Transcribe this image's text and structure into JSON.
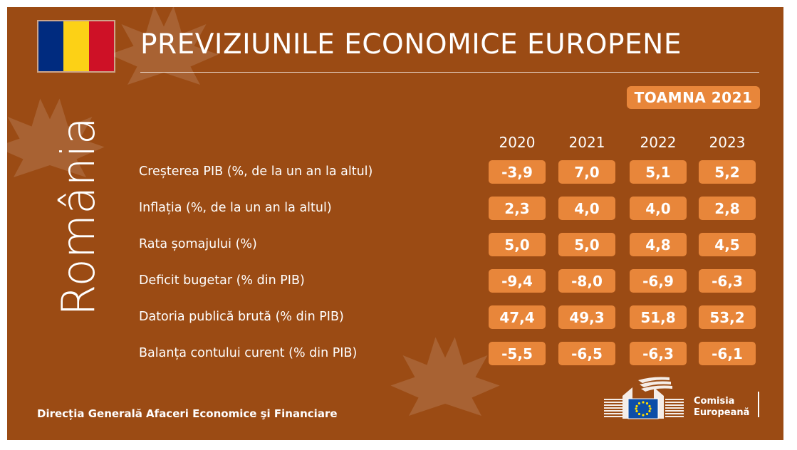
{
  "header": {
    "title": "PREVIZIUNILE ECONOMICE EUROPENE",
    "season": "TOAMNA 2021",
    "country": "România"
  },
  "flag": {
    "colors": [
      "#002b7f",
      "#fcd116",
      "#ce1126"
    ]
  },
  "years": [
    "2020",
    "2021",
    "2022",
    "2023"
  ],
  "rows": [
    {
      "label": "Creșterea PIB (%, de la un an la altul)",
      "values": [
        "-3,9",
        "7,0",
        "5,1",
        "5,2"
      ]
    },
    {
      "label": "Inflația (%, de la un an la altul)",
      "values": [
        "2,3",
        "4,0",
        "4,0",
        "2,8"
      ]
    },
    {
      "label": "Rata șomajului (%)",
      "values": [
        "5,0",
        "5,0",
        "4,8",
        "4,5"
      ]
    },
    {
      "label": "Deficit bugetar (% din PIB)",
      "values": [
        "-9,4",
        "-8,0",
        "-6,9",
        "-6,3"
      ]
    },
    {
      "label": "Datoria publică brută (% din PIB)",
      "values": [
        "47,4",
        "49,3",
        "51,8",
        "53,2"
      ]
    },
    {
      "label": "Balanța contului curent (% din PIB)",
      "values": [
        "-5,5",
        "-6,5",
        "-6,3",
        "-6,1"
      ]
    }
  ],
  "footer": {
    "department": "Direcția Generală Afaceri Economice şi Financiare",
    "logo_line1": "Comisia",
    "logo_line2": "Europeană"
  },
  "colors": {
    "background": "#9b4b14",
    "accent": "#e8863a",
    "text": "#ffffff"
  },
  "icons": {
    "logo": "european-commission-logo-icon",
    "decor": "maple-leaf-icon"
  }
}
